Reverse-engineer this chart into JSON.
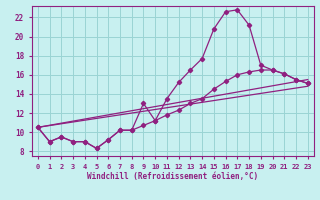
{
  "xlabel": "Windchill (Refroidissement éolien,°C)",
  "bg_color": "#c8f0f0",
  "line_color": "#902080",
  "grid_color": "#9ad4d4",
  "xlim": [
    -0.5,
    23.5
  ],
  "ylim": [
    7.5,
    23.2
  ],
  "xticks": [
    0,
    1,
    2,
    3,
    4,
    5,
    6,
    7,
    8,
    9,
    10,
    11,
    12,
    13,
    14,
    15,
    16,
    17,
    18,
    19,
    20,
    21,
    22,
    23
  ],
  "yticks": [
    8,
    10,
    12,
    14,
    16,
    18,
    20,
    22
  ],
  "curve1_x": [
    0,
    1,
    2,
    3,
    4,
    5,
    6,
    7,
    8,
    9,
    10,
    11,
    12,
    13,
    14,
    15,
    16,
    17,
    18,
    19,
    20,
    21,
    22,
    23
  ],
  "curve1_y": [
    10.5,
    9.0,
    9.5,
    9.0,
    9.0,
    8.3,
    9.2,
    10.2,
    10.2,
    13.0,
    11.2,
    13.5,
    15.2,
    16.5,
    17.7,
    20.8,
    22.6,
    22.8,
    21.2,
    17.0,
    16.5,
    16.1,
    15.5,
    15.1
  ],
  "curve2_x": [
    0,
    1,
    2,
    3,
    4,
    5,
    6,
    7,
    8,
    9,
    10,
    11,
    12,
    13,
    14,
    15,
    16,
    17,
    18,
    19,
    20,
    21,
    22,
    23
  ],
  "curve2_y": [
    10.5,
    9.0,
    9.5,
    9.0,
    9.0,
    8.3,
    9.2,
    10.2,
    10.2,
    10.7,
    11.2,
    11.8,
    12.3,
    13.0,
    13.5,
    14.5,
    15.3,
    16.0,
    16.3,
    16.5,
    16.5,
    16.1,
    15.5,
    15.1
  ],
  "line1_x": [
    0,
    23
  ],
  "line1_y": [
    10.5,
    14.8
  ],
  "line2_x": [
    0,
    23
  ],
  "line2_y": [
    10.5,
    15.5
  ]
}
